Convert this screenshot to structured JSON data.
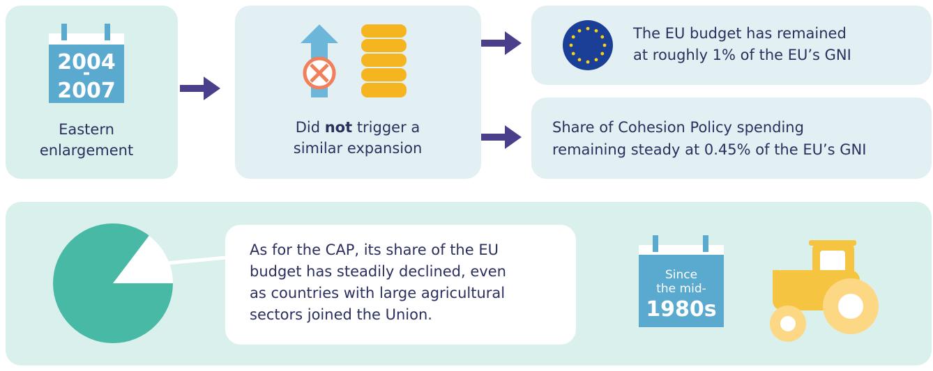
{
  "enlargement": {
    "year_start": "2004",
    "separator": "-",
    "year_end": "2007",
    "label_lines": [
      "Eastern",
      "enlargement"
    ]
  },
  "effect": {
    "line1": [
      "Did ",
      "not",
      " trigger a"
    ],
    "line2": "similar expansion"
  },
  "outcomes": [
    {
      "lines": [
        "The EU budget has remained",
        "at roughly 1% of the EU’s GNI"
      ]
    },
    {
      "lines": [
        "Share of Cohesion Policy spending",
        "remaining steady at 0.45% of the EU’s GNI"
      ]
    }
  ],
  "cap": {
    "lines": [
      "As for the CAP, its share of the EU",
      "budget has steadily declined, even",
      "as countries with large agricultural",
      "sectors joined the Union."
    ],
    "since": [
      "Since",
      "the mid-"
    ],
    "period": "1980s"
  }
}
